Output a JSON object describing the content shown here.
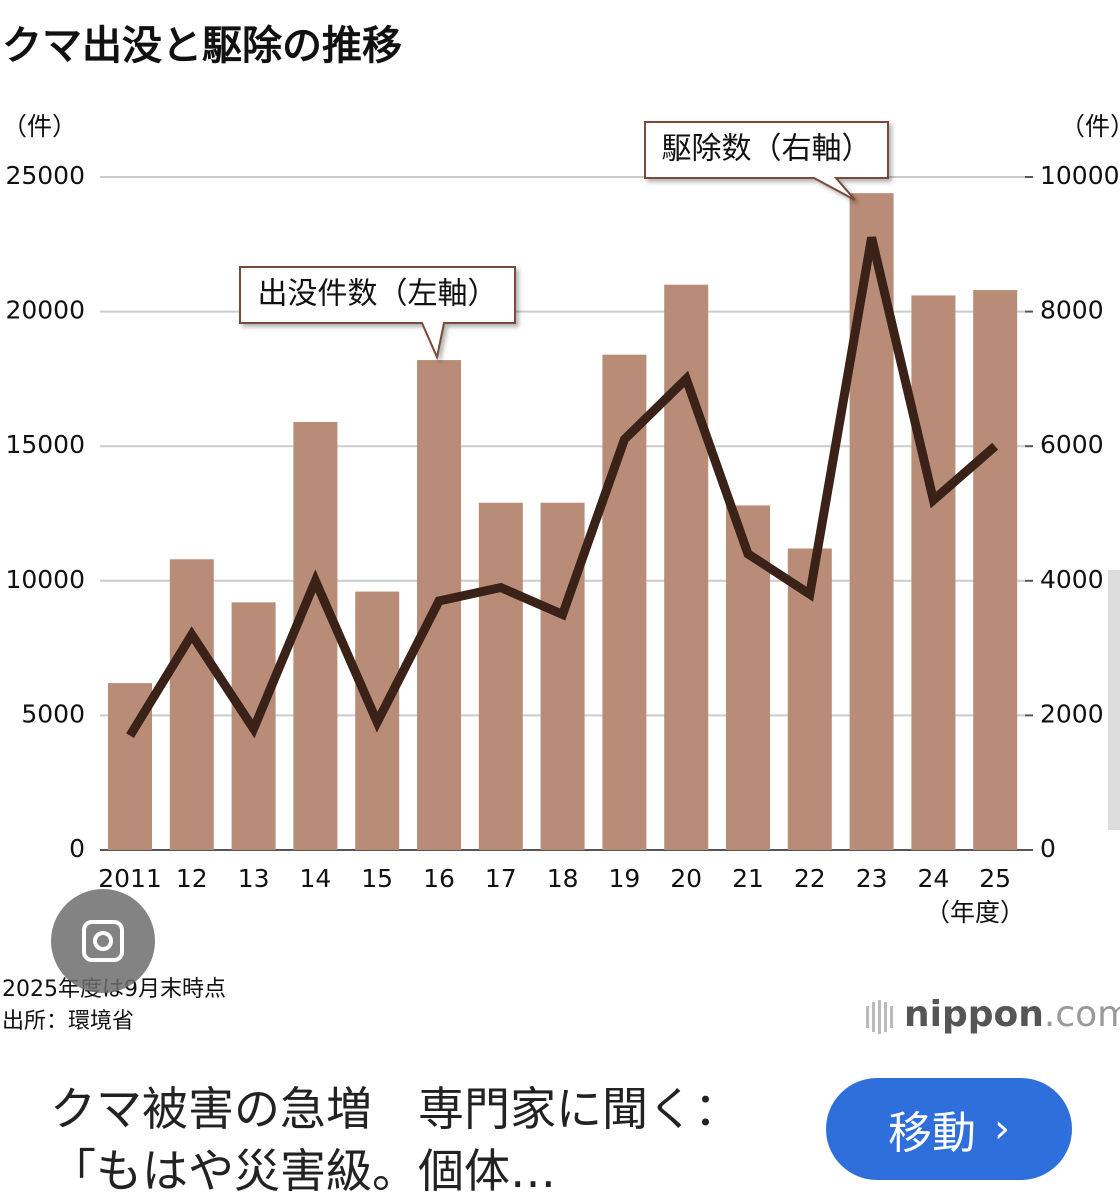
{
  "chart_data": {
    "type": "bar_line",
    "title": "クマ出没と駆除の推移",
    "y_unit": "（件）",
    "y2_unit": "（件）",
    "x_unit": "（年度）",
    "categories": [
      "2011",
      "12",
      "13",
      "14",
      "15",
      "16",
      "17",
      "18",
      "19",
      "20",
      "21",
      "22",
      "23",
      "24",
      "25"
    ],
    "series": [
      {
        "name": "出没件数（左軸）",
        "type": "bar",
        "color": "#b98c78",
        "values": [
          6200,
          10800,
          9200,
          15900,
          9600,
          18200,
          12900,
          12900,
          18400,
          21000,
          12800,
          11200,
          24400,
          20600,
          20800
        ]
      },
      {
        "name": "駆除数（右軸）",
        "type": "line",
        "axis": "y2",
        "color": "#3a2218",
        "values": [
          1700,
          3200,
          1800,
          4000,
          1900,
          3700,
          3900,
          3500,
          6100,
          7000,
          4400,
          3800,
          9100,
          5200,
          6000
        ]
      }
    ],
    "ylim": [
      0,
      25000
    ],
    "yticks": [
      0,
      5000,
      10000,
      15000,
      20000,
      25000
    ],
    "y2lim": [
      0,
      10000
    ],
    "y2ticks": [
      0,
      2000,
      4000,
      6000,
      8000,
      10000
    ],
    "grid": true,
    "notes": [
      "2025年度は9月末時点",
      "出所：環境省"
    ]
  },
  "brand": {
    "name": "nippon",
    "suffix": ".com"
  },
  "result": {
    "title": "クマ被害の急増　専門家に聞く：「もはや災害級。個体…",
    "button": "移動"
  }
}
